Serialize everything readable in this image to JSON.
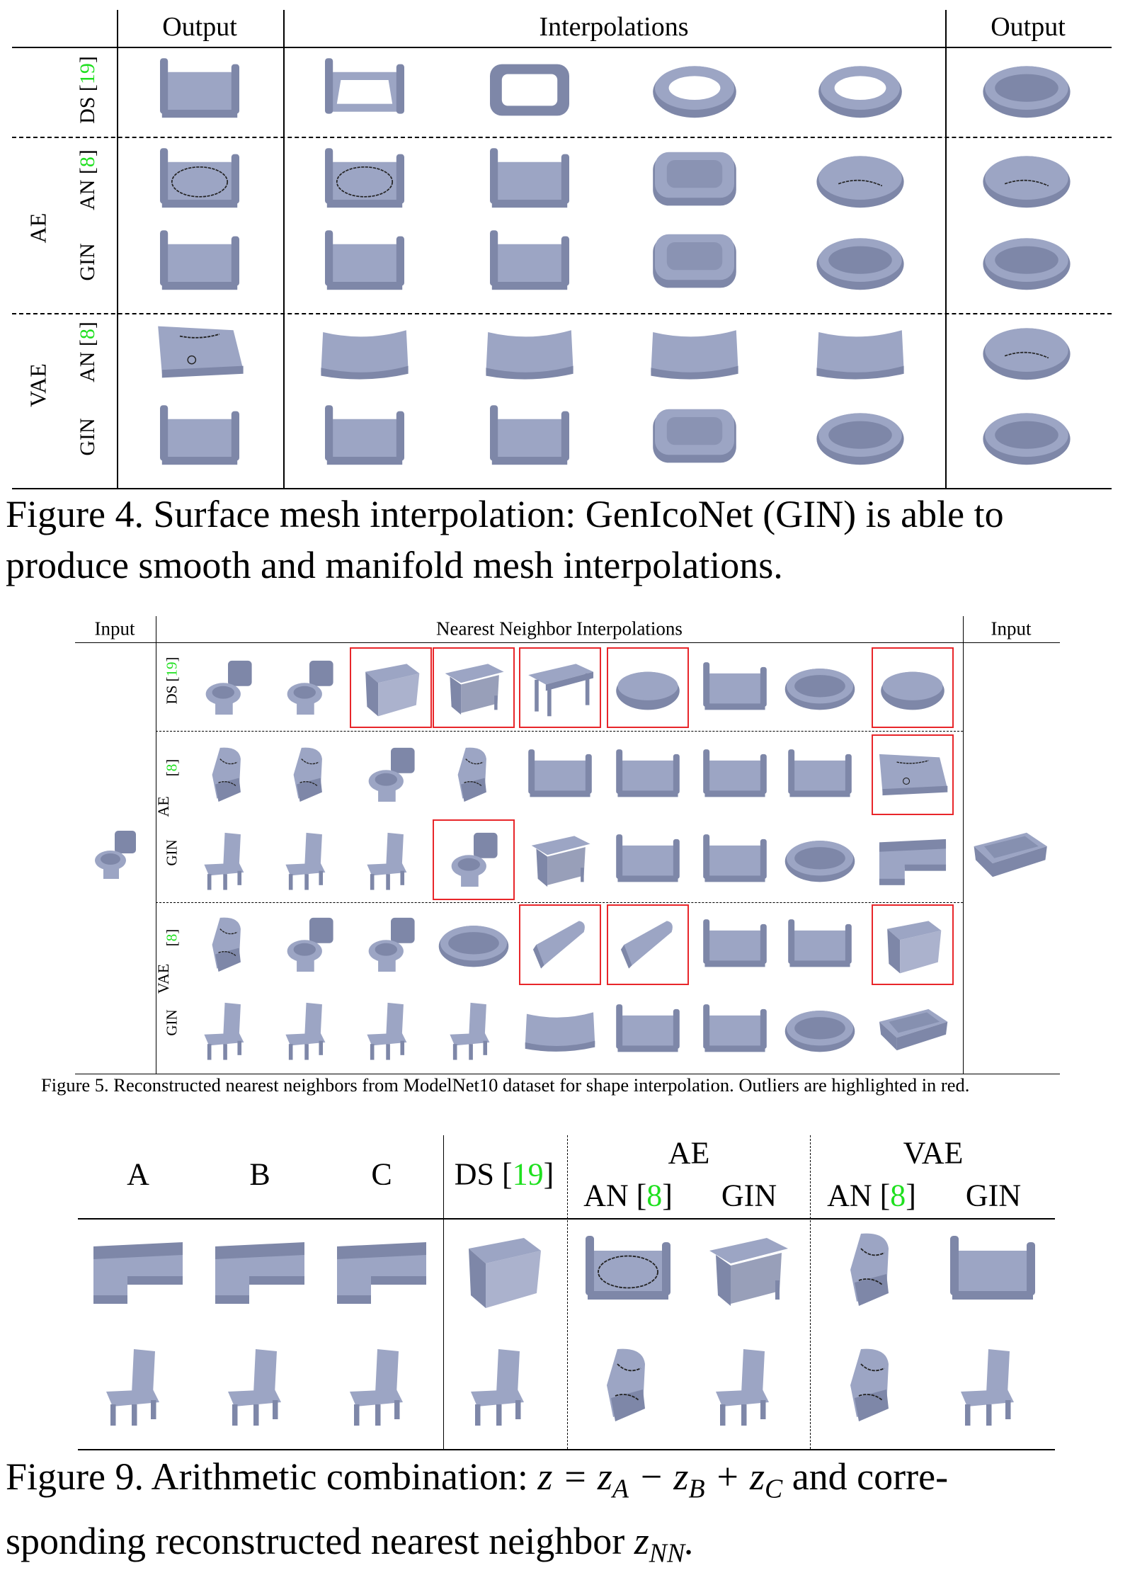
{
  "colors": {
    "mesh": "#9ca5c4",
    "mesh_dark": "#7e87a8",
    "cite": "#1fe01f",
    "outlier": "#e8262a"
  },
  "fig4": {
    "headers": {
      "left": "Output",
      "middle": "Interpolations",
      "right": "Output"
    },
    "groups": {
      "ae": "AE",
      "vae": "VAE"
    },
    "rows": [
      {
        "label": {
          "pre": "DS [",
          "cite": "19",
          "post": "]"
        },
        "shapes": [
          "bed",
          "bed-frame",
          "tub-frame",
          "tub-ring",
          "tub-ring",
          "tub"
        ]
      },
      {
        "label": {
          "pre": "AN [",
          "cite": "8",
          "post": "]"
        },
        "shapes": [
          "bed-flaw",
          "bed-flaw",
          "bed",
          "tub-rect",
          "tub-flaw",
          "tub-flaw"
        ]
      },
      {
        "label": {
          "pre": "GIN",
          "cite": "",
          "post": ""
        },
        "shapes": [
          "bed",
          "bed",
          "bed",
          "tub-rect",
          "tub",
          "tub"
        ]
      },
      {
        "label": {
          "pre": "AN [",
          "cite": "8",
          "post": "]"
        },
        "shapes": [
          "mattress-flaw",
          "mattress",
          "mattress",
          "mattress",
          "mattress",
          "tub-flaw"
        ]
      },
      {
        "label": {
          "pre": "GIN",
          "cite": "",
          "post": ""
        },
        "shapes": [
          "bed",
          "bed",
          "bed",
          "tub-rect",
          "tub",
          "tub"
        ]
      }
    ],
    "caption": [
      "Figure 4. Surface mesh interpolation: GenIcoNet (GIN) is able to",
      "produce smooth and manifold mesh interpolations."
    ]
  },
  "fig5": {
    "headers": {
      "left": "Input",
      "middle": "Nearest Neighbor Interpolations",
      "right": "Input"
    },
    "groups": {
      "ae": "AE",
      "vae": "VAE"
    },
    "input_left": "toilet",
    "input_right": "tub-box",
    "rows": [
      {
        "label": {
          "pre": "DS [",
          "cite": "19",
          "post": "]"
        },
        "shapes": [
          "toilet",
          "toilet",
          "cabinet",
          "nightstand",
          "desk",
          "tub-oval",
          "bed",
          "tub",
          "tub-oval"
        ],
        "outliers": [
          false,
          false,
          true,
          true,
          true,
          true,
          false,
          false,
          true
        ]
      },
      {
        "label": {
          "pre": "[",
          "cite": "8",
          "post": "]"
        },
        "shapes": [
          "chair-flaw",
          "chair-flaw",
          "toilet",
          "chair-flaw",
          "bed",
          "bed",
          "bed",
          "bed",
          "mattress-flaw"
        ],
        "outliers": [
          false,
          false,
          false,
          false,
          false,
          false,
          false,
          false,
          true
        ]
      },
      {
        "label": {
          "pre": "GIN",
          "cite": "",
          "post": ""
        },
        "shapes": [
          "chair",
          "chair",
          "chair",
          "toilet",
          "nightstand",
          "bed",
          "bed",
          "tub",
          "sofa"
        ],
        "outliers": [
          false,
          false,
          false,
          true,
          false,
          false,
          false,
          false,
          false
        ]
      },
      {
        "label": {
          "pre": "[",
          "cite": "8",
          "post": "]"
        },
        "shapes": [
          "chair-flaw",
          "toilet",
          "toilet",
          "tub",
          "slab",
          "slab",
          "bed",
          "bed",
          "cabinet"
        ],
        "outliers": [
          false,
          false,
          false,
          false,
          true,
          true,
          false,
          false,
          true
        ]
      },
      {
        "label": {
          "pre": "GIN",
          "cite": "",
          "post": ""
        },
        "shapes": [
          "chair",
          "chair",
          "chair",
          "chair",
          "mattress",
          "bed",
          "bed",
          "tub",
          "tub-box"
        ],
        "outliers": [
          false,
          false,
          false,
          false,
          false,
          false,
          false,
          false,
          false
        ]
      }
    ],
    "caption": "Figure 5. Reconstructed nearest neighbors from ModelNet10 dataset for shape interpolation. Outliers are highlighted in red."
  },
  "fig9": {
    "headers": {
      "a": "A",
      "b": "B",
      "c": "C",
      "ds": {
        "pre": "DS [",
        "cite": "19",
        "post": "]"
      },
      "ae": "AE",
      "vae": "VAE",
      "ae_an": {
        "pre": "AN [",
        "cite": "8",
        "post": "]"
      },
      "ae_gin": "GIN",
      "vae_an": {
        "pre": "AN [",
        "cite": "8",
        "post": "]"
      },
      "vae_gin": "GIN"
    },
    "rows": [
      {
        "shapes": [
          "sofa",
          "sofa",
          "sofa",
          "cabinet",
          "bed-flaw",
          "nightstand",
          "chair-flaw",
          "bed"
        ]
      },
      {
        "shapes": [
          "chair",
          "chair",
          "chair",
          "chair",
          "chair-flaw",
          "chair",
          "chair-flaw",
          "chair"
        ]
      }
    ],
    "caption": {
      "line1_text": "Figure 9. Arithmetic combination: ",
      "line1_math": [
        {
          "t": "z"
        },
        {
          "t": " = "
        },
        {
          "t": "z",
          "sub": "A"
        },
        {
          "t": " − "
        },
        {
          "t": "z",
          "sub": "B"
        },
        {
          "t": " + "
        },
        {
          "t": "z",
          "sub": "C"
        }
      ],
      "line1_tail": " and corre-",
      "line2_text": "sponding reconstructed nearest neighbor ",
      "line2_math": [
        {
          "t": "z",
          "sub": "NN"
        },
        {
          "t": "."
        }
      ]
    }
  }
}
